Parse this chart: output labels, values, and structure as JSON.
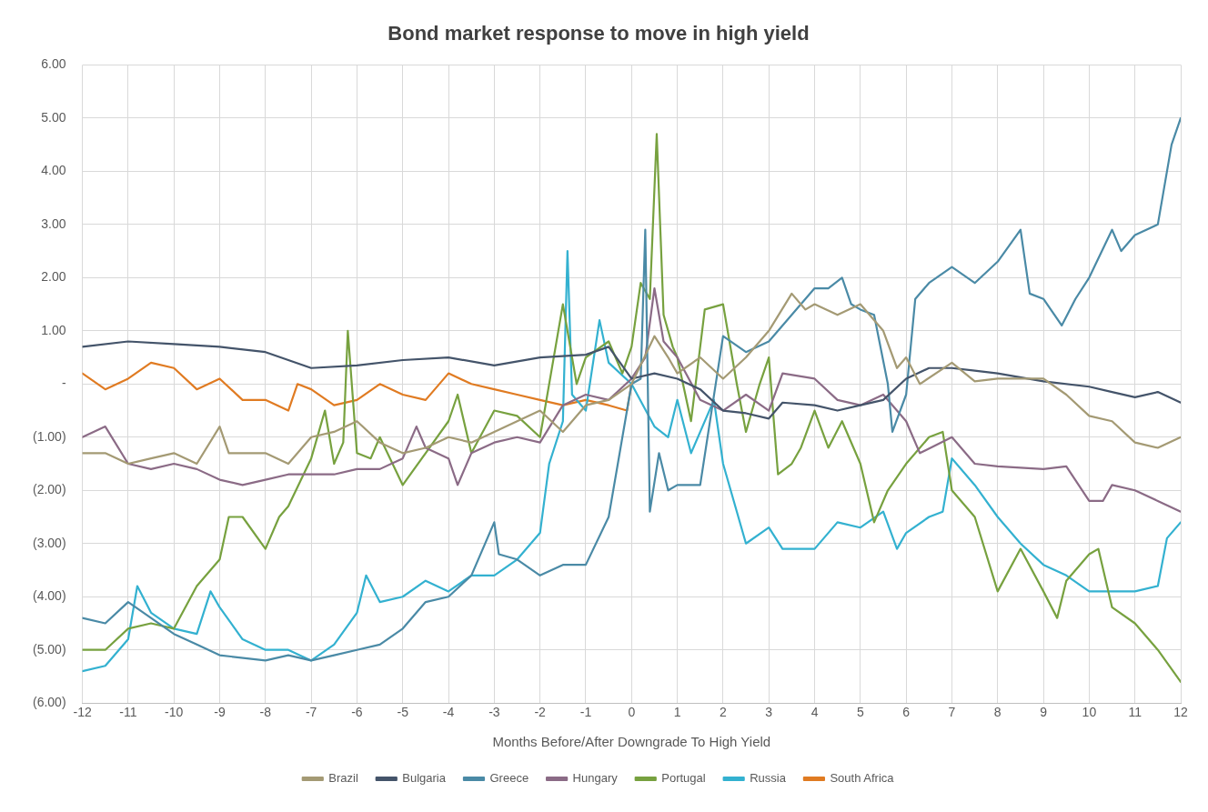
{
  "chart_data": {
    "type": "line",
    "title": "Bond market response to move in high yield",
    "xlabel": "Months Before/After Downgrade To High Yield",
    "xlim": [
      -12,
      12
    ],
    "xticks": [
      -12,
      -11,
      -10,
      -9,
      -8,
      -7,
      -6,
      -5,
      -4,
      -3,
      -2,
      -1,
      0,
      1,
      2,
      3,
      4,
      5,
      6,
      7,
      8,
      9,
      10,
      11,
      12
    ],
    "ylim": [
      -6,
      6
    ],
    "yticks": [
      {
        "value": -6,
        "label": "(6.00)"
      },
      {
        "value": -5,
        "label": "(5.00)"
      },
      {
        "value": -4,
        "label": "(4.00)"
      },
      {
        "value": -3,
        "label": "(3.00)"
      },
      {
        "value": -2,
        "label": "(2.00)"
      },
      {
        "value": -1,
        "label": "(1.00)"
      },
      {
        "value": 0,
        "label": "-"
      },
      {
        "value": 1,
        "label": "1.00"
      },
      {
        "value": 2,
        "label": "2.00"
      },
      {
        "value": 3,
        "label": "3.00"
      },
      {
        "value": 4,
        "label": "4.00"
      },
      {
        "value": 5,
        "label": "5.00"
      },
      {
        "value": 6,
        "label": "6.00"
      }
    ],
    "grid": true,
    "legend": "bottom",
    "marker": "none",
    "line_style": "solid",
    "series": [
      {
        "name": "Brazil",
        "color": "#a49a74",
        "x": [
          -12,
          -11.5,
          -11,
          -10.5,
          -10,
          -9.5,
          -9,
          -8.8,
          -8,
          -7.5,
          -7,
          -6.5,
          -6,
          -5.5,
          -5,
          -4.5,
          -4,
          -3.5,
          -3,
          -2.5,
          -2,
          -1.5,
          -1,
          -0.5,
          0,
          0.5,
          0.8,
          1,
          1.5,
          2,
          2.5,
          3,
          3.5,
          3.8,
          4,
          4.5,
          5,
          5.5,
          5.8,
          6,
          6.3,
          7,
          7.5,
          8,
          9,
          9.5,
          10,
          10.5,
          11,
          11.5,
          12
        ],
        "values": [
          -1.3,
          -1.3,
          -1.5,
          -1.4,
          -1.3,
          -1.5,
          -0.8,
          -1.3,
          -1.3,
          -1.5,
          -1.0,
          -0.9,
          -0.7,
          -1.1,
          -1.3,
          -1.2,
          -1.0,
          -1.1,
          -0.9,
          -0.7,
          -0.5,
          -0.9,
          -0.4,
          -0.3,
          0,
          0.9,
          0.5,
          0.2,
          0.5,
          0.1,
          0.5,
          1.0,
          1.7,
          1.4,
          1.5,
          1.3,
          1.5,
          1.0,
          0.3,
          0.5,
          0.0,
          0.4,
          0.05,
          0.1,
          0.1,
          -0.2,
          -0.6,
          -0.7,
          -1.1,
          -1.2,
          -1.0
        ]
      },
      {
        "name": "Bulgaria",
        "color": "#44546a",
        "x": [
          -12,
          -11,
          -10,
          -9,
          -8,
          -7,
          -6,
          -5,
          -4,
          -3,
          -2,
          -1,
          -0.5,
          0,
          0.5,
          1,
          1.5,
          2,
          2.5,
          3,
          3.3,
          4,
          4.5,
          5,
          5.5,
          6,
          6.5,
          7,
          7.5,
          8,
          9,
          10,
          10.5,
          11,
          11.5,
          12
        ],
        "values": [
          0.7,
          0.8,
          0.75,
          0.7,
          0.6,
          0.3,
          0.35,
          0.45,
          0.5,
          0.35,
          0.5,
          0.55,
          0.7,
          0.1,
          0.2,
          0.1,
          -0.1,
          -0.5,
          -0.55,
          -0.65,
          -0.35,
          -0.4,
          -0.5,
          -0.4,
          -0.3,
          0.1,
          0.3,
          0.3,
          0.25,
          0.2,
          0.05,
          -0.05,
          -0.15,
          -0.25,
          -0.15,
          -0.35
        ]
      },
      {
        "name": "Greece",
        "color": "#4a8aa6",
        "x": [
          -12,
          -11.5,
          -11,
          -10.5,
          -10,
          -9.5,
          -9,
          -8,
          -7.5,
          -7,
          -6.5,
          -6,
          -5.5,
          -5,
          -4.5,
          -4,
          -3.5,
          -3,
          -2.9,
          -2.5,
          -2,
          -1.5,
          -1,
          -0.5,
          0,
          0.2,
          0.3,
          0.4,
          0.6,
          0.8,
          1,
          1.5,
          2,
          2.5,
          3,
          3.5,
          4,
          4.3,
          4.6,
          4.8,
          5,
          5.3,
          5.6,
          5.7,
          6,
          6.2,
          6.5,
          7,
          7.5,
          8,
          8.5,
          8.7,
          9,
          9.4,
          9.7,
          10,
          10.5,
          10.7,
          11,
          11.5,
          11.8,
          12
        ],
        "values": [
          -4.4,
          -4.5,
          -4.1,
          -4.4,
          -4.7,
          -4.9,
          -5.1,
          -5.2,
          -5.1,
          -5.2,
          -5.1,
          -5.0,
          -4.9,
          -4.6,
          -4.1,
          -4.0,
          -3.6,
          -2.6,
          -3.2,
          -3.3,
          -3.6,
          -3.4,
          -3.4,
          -2.5,
          0,
          0.1,
          2.9,
          -2.4,
          -1.3,
          -2.0,
          -1.9,
          -1.9,
          0.9,
          0.6,
          0.8,
          1.3,
          1.8,
          1.8,
          2.0,
          1.5,
          1.4,
          1.3,
          0.0,
          -0.9,
          -0.2,
          1.6,
          1.9,
          2.2,
          1.9,
          2.3,
          2.9,
          1.7,
          1.6,
          1.1,
          1.6,
          2.0,
          2.9,
          2.5,
          2.8,
          3.0,
          4.5,
          5.0
        ]
      },
      {
        "name": "Hungary",
        "color": "#8b6b86",
        "x": [
          -12,
          -11.5,
          -11,
          -10.5,
          -10,
          -9.5,
          -9,
          -8.5,
          -8,
          -7.5,
          -7,
          -6.5,
          -6,
          -5.5,
          -5,
          -4.7,
          -4.5,
          -4,
          -3.8,
          -3.5,
          -3,
          -2.5,
          -2,
          -1.5,
          -1,
          -0.5,
          0,
          0.3,
          0.5,
          0.7,
          1,
          1.5,
          2,
          2.5,
          3,
          3.3,
          4,
          4.5,
          5,
          5.5,
          6,
          6.3,
          7,
          7.5,
          8,
          9,
          9.5,
          10,
          10.3,
          10.5,
          11,
          11.5,
          12
        ],
        "values": [
          -1.0,
          -0.8,
          -1.5,
          -1.6,
          -1.5,
          -1.6,
          -1.8,
          -1.9,
          -1.8,
          -1.7,
          -1.7,
          -1.7,
          -1.6,
          -1.6,
          -1.4,
          -0.8,
          -1.2,
          -1.4,
          -1.9,
          -1.3,
          -1.1,
          -1.0,
          -1.1,
          -0.4,
          -0.2,
          -0.3,
          0.1,
          0.5,
          1.8,
          0.8,
          0.5,
          -0.3,
          -0.5,
          -0.2,
          -0.5,
          0.2,
          0.1,
          -0.3,
          -0.4,
          -0.2,
          -0.7,
          -1.3,
          -1.0,
          -1.5,
          -1.55,
          -1.6,
          -1.55,
          -2.2,
          -2.2,
          -1.9,
          -2.0,
          -2.2,
          -2.4
        ]
      },
      {
        "name": "Portugal",
        "color": "#77a13f",
        "x": [
          -12,
          -11.5,
          -11,
          -10.5,
          -10,
          -9.5,
          -9,
          -8.8,
          -8.5,
          -8,
          -7.7,
          -7.5,
          -7,
          -6.7,
          -6.5,
          -6.3,
          -6.2,
          -6,
          -5.7,
          -5.5,
          -5,
          -4.5,
          -4,
          -3.8,
          -3.5,
          -3,
          -2.5,
          -2,
          -1.5,
          -1.2,
          -1,
          -0.5,
          -0.2,
          0,
          0.2,
          0.4,
          0.55,
          0.7,
          0.9,
          1,
          1.3,
          1.6,
          2,
          2.3,
          2.5,
          2.8,
          3,
          3.2,
          3.5,
          3.7,
          4,
          4.3,
          4.6,
          5,
          5.3,
          5.6,
          6,
          6.5,
          6.8,
          7,
          7.5,
          8,
          8.5,
          9,
          9.3,
          9.5,
          10,
          10.2,
          10.5,
          11,
          11.5,
          12
        ],
        "values": [
          -5.0,
          -5.0,
          -4.6,
          -4.5,
          -4.6,
          -3.8,
          -3.3,
          -2.5,
          -2.5,
          -3.1,
          -2.5,
          -2.3,
          -1.4,
          -0.5,
          -1.5,
          -1.1,
          1.0,
          -1.3,
          -1.4,
          -1.0,
          -1.9,
          -1.3,
          -0.7,
          -0.2,
          -1.3,
          -0.5,
          -0.6,
          -1.0,
          1.5,
          0.0,
          0.5,
          0.8,
          0.2,
          0.7,
          1.9,
          1.6,
          4.7,
          1.3,
          0.7,
          0.5,
          -0.7,
          1.4,
          1.5,
          0.0,
          -0.9,
          0.0,
          0.5,
          -1.7,
          -1.5,
          -1.2,
          -0.5,
          -1.2,
          -0.7,
          -1.5,
          -2.6,
          -2.0,
          -1.5,
          -1.0,
          -0.9,
          -2.0,
          -2.5,
          -3.9,
          -3.1,
          -3.9,
          -4.4,
          -3.7,
          -3.2,
          -3.1,
          -4.2,
          -4.5,
          -5.0,
          -5.6
        ]
      },
      {
        "name": "Russia",
        "color": "#33b1d0",
        "x": [
          -12,
          -11.5,
          -11,
          -10.8,
          -10.5,
          -10,
          -9.5,
          -9.2,
          -9,
          -8.5,
          -8,
          -7.5,
          -7,
          -6.5,
          -6,
          -5.8,
          -5.5,
          -5,
          -4.5,
          -4,
          -3.5,
          -3,
          -2.5,
          -2,
          -1.8,
          -1.5,
          -1.4,
          -1.3,
          -1,
          -0.7,
          -0.5,
          0,
          0.5,
          0.8,
          1,
          1.3,
          1.8,
          2,
          2.5,
          3,
          3.3,
          4,
          4.5,
          5,
          5.5,
          5.8,
          6,
          6.5,
          6.8,
          7,
          7.5,
          8,
          8.5,
          9,
          9.5,
          10,
          11,
          11.5,
          11.7,
          12
        ],
        "values": [
          -5.4,
          -5.3,
          -4.8,
          -3.8,
          -4.3,
          -4.6,
          -4.7,
          -3.9,
          -4.2,
          -4.8,
          -5.0,
          -5.0,
          -5.2,
          -4.9,
          -4.3,
          -3.6,
          -4.1,
          -4.0,
          -3.7,
          -3.9,
          -3.6,
          -3.6,
          -3.3,
          -2.8,
          -1.5,
          -0.7,
          2.5,
          -0.2,
          -0.5,
          1.2,
          0.4,
          0,
          -0.8,
          -1.0,
          -0.3,
          -1.3,
          -0.3,
          -1.5,
          -3.0,
          -2.7,
          -3.1,
          -3.1,
          -2.6,
          -2.7,
          -2.4,
          -3.1,
          -2.8,
          -2.5,
          -2.4,
          -1.4,
          -1.9,
          -2.5,
          -3.0,
          -3.4,
          -3.6,
          -3.9,
          -3.9,
          -3.8,
          -2.9,
          -2.6
        ]
      },
      {
        "name": "South Africa",
        "color": "#e07b22",
        "x": [
          -12,
          -11.5,
          -11,
          -10.5,
          -10,
          -9.5,
          -9,
          -8.5,
          -8,
          -7.5,
          -7.3,
          -7,
          -6.5,
          -6,
          -5.5,
          -5,
          -4.5,
          -4,
          -3.5,
          -3,
          -2.5,
          -2,
          -1.5,
          -1,
          -0.5,
          -0.1,
          0
        ],
        "values": [
          0.2,
          -0.1,
          0.1,
          0.4,
          0.3,
          -0.1,
          0.1,
          -0.3,
          -0.3,
          -0.5,
          0.0,
          -0.1,
          -0.4,
          -0.3,
          0.0,
          -0.2,
          -0.3,
          0.2,
          0.0,
          -0.1,
          -0.2,
          -0.3,
          -0.4,
          -0.3,
          -0.4,
          -0.5,
          0
        ]
      }
    ]
  }
}
